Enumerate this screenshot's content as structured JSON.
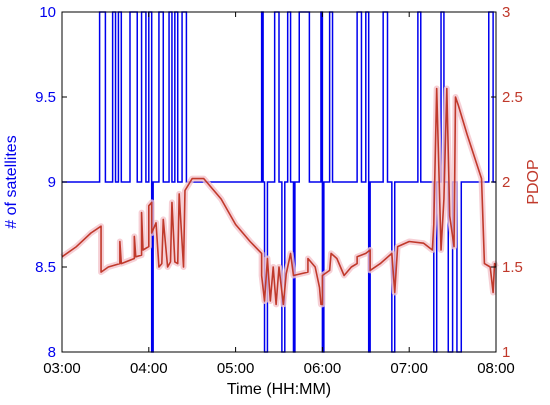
{
  "chart_data": {
    "type": "line",
    "xlabel": "Time (HH:MM)",
    "ylabel_left": "# of satellites",
    "ylabel_right": "PDOP",
    "x_range": [
      "03:00",
      "08:00"
    ],
    "x_ticks": [
      "03:00",
      "04:00",
      "05:00",
      "06:00",
      "07:00",
      "08:00"
    ],
    "y_left_range": [
      8,
      10
    ],
    "y_left_ticks": [
      "8",
      "8.5",
      "9",
      "9.5",
      "10"
    ],
    "y_right_range": [
      1,
      3
    ],
    "y_right_ticks": [
      "1",
      "1.5",
      "2",
      "2.5",
      "3"
    ],
    "grid": false,
    "colors": {
      "satellites": "#0000ee",
      "pdop": "#c0392b",
      "pdop_glow": "#f4c4cc"
    },
    "series": [
      {
        "axis": "left",
        "points": [
          [
            "03:00",
            9
          ],
          [
            "03:26",
            9
          ],
          [
            "03:26",
            10
          ],
          [
            "03:30",
            10
          ],
          [
            "03:30",
            9
          ],
          [
            "03:35",
            9
          ],
          [
            "03:35",
            10
          ],
          [
            "03:37",
            10
          ],
          [
            "03:37",
            9
          ],
          [
            "03:39",
            9
          ],
          [
            "03:39",
            10
          ],
          [
            "03:41",
            10
          ],
          [
            "03:41",
            9
          ],
          [
            "03:47",
            9
          ],
          [
            "03:47",
            10
          ],
          [
            "03:52",
            10
          ],
          [
            "03:52",
            9
          ],
          [
            "03:55",
            9
          ],
          [
            "03:55",
            10
          ],
          [
            "03:58",
            10
          ],
          [
            "03:58",
            9
          ],
          [
            "04:00",
            9
          ],
          [
            "04:00",
            10
          ],
          [
            "04:02",
            10
          ],
          [
            "04:02",
            8
          ],
          [
            "04:03",
            8
          ],
          [
            "04:03",
            9
          ],
          [
            "04:07",
            9
          ],
          [
            "04:07",
            10
          ],
          [
            "04:10",
            10
          ],
          [
            "04:10",
            9
          ],
          [
            "04:14",
            9
          ],
          [
            "04:14",
            10
          ],
          [
            "04:16",
            10
          ],
          [
            "04:16",
            9
          ],
          [
            "04:18",
            9
          ],
          [
            "04:18",
            10
          ],
          [
            "04:20",
            10
          ],
          [
            "04:20",
            9
          ],
          [
            "04:23",
            9
          ],
          [
            "04:23",
            10
          ],
          [
            "04:26",
            10
          ],
          [
            "04:26",
            9
          ],
          [
            "05:18",
            9
          ],
          [
            "05:18",
            10
          ],
          [
            "05:19",
            10
          ],
          [
            "05:19",
            9
          ],
          [
            "05:20",
            9
          ],
          [
            "05:20",
            8
          ],
          [
            "05:22",
            8
          ],
          [
            "05:22",
            9
          ],
          [
            "05:27",
            9
          ],
          [
            "05:27",
            10
          ],
          [
            "05:30",
            10
          ],
          [
            "05:30",
            9
          ],
          [
            "05:32",
            9
          ],
          [
            "05:32",
            8
          ],
          [
            "05:34",
            8
          ],
          [
            "05:34",
            9
          ],
          [
            "05:36",
            9
          ],
          [
            "05:36",
            10
          ],
          [
            "05:38",
            10
          ],
          [
            "05:38",
            9
          ],
          [
            "05:40",
            9
          ],
          [
            "05:40",
            8
          ],
          [
            "05:41",
            8
          ],
          [
            "05:41",
            9
          ],
          [
            "05:44",
            9
          ],
          [
            "05:44",
            10
          ],
          [
            "05:51",
            10
          ],
          [
            "05:51",
            9
          ],
          [
            "05:59",
            9
          ],
          [
            "05:59",
            10
          ],
          [
            "06:00",
            10
          ],
          [
            "06:00",
            8
          ],
          [
            "06:01",
            8
          ],
          [
            "06:01",
            9
          ],
          [
            "06:05",
            9
          ],
          [
            "06:05",
            10
          ],
          [
            "06:07",
            10
          ],
          [
            "06:07",
            9
          ],
          [
            "06:24",
            9
          ],
          [
            "06:24",
            10
          ],
          [
            "06:27",
            10
          ],
          [
            "06:27",
            9
          ],
          [
            "06:30",
            9
          ],
          [
            "06:30",
            10
          ],
          [
            "06:32",
            10
          ],
          [
            "06:32",
            8
          ],
          [
            "06:33",
            8
          ],
          [
            "06:33",
            9
          ],
          [
            "06:42",
            9
          ],
          [
            "06:42",
            10
          ],
          [
            "06:45",
            10
          ],
          [
            "06:45",
            9
          ],
          [
            "06:48",
            9
          ],
          [
            "06:48",
            8
          ],
          [
            "06:50",
            8
          ],
          [
            "06:50",
            9
          ],
          [
            "07:06",
            9
          ],
          [
            "07:06",
            10
          ],
          [
            "07:08",
            10
          ],
          [
            "07:08",
            9
          ],
          [
            "07:17",
            9
          ],
          [
            "07:17",
            8
          ],
          [
            "07:19",
            8
          ],
          [
            "07:19",
            9
          ],
          [
            "07:22",
            9
          ],
          [
            "07:22",
            10
          ],
          [
            "07:24",
            10
          ],
          [
            "07:24",
            9
          ],
          [
            "07:27",
            9
          ],
          [
            "07:27",
            8
          ],
          [
            "07:30",
            8
          ],
          [
            "07:30",
            9
          ],
          [
            "07:33",
            9
          ],
          [
            "07:33",
            8
          ],
          [
            "07:36",
            8
          ],
          [
            "07:36",
            9
          ],
          [
            "07:55",
            9
          ],
          [
            "07:55",
            10
          ],
          [
            "07:58",
            10
          ],
          [
            "07:58",
            9
          ],
          [
            "08:00",
            9
          ]
        ]
      },
      {
        "axis": "right",
        "points": [
          [
            "03:00",
            1.56
          ],
          [
            "03:10",
            1.62
          ],
          [
            "03:20",
            1.7
          ],
          [
            "03:27",
            1.74
          ],
          [
            "03:27",
            1.47
          ],
          [
            "03:32",
            1.5
          ],
          [
            "03:40",
            1.52
          ],
          [
            "03:40",
            1.65
          ],
          [
            "03:41",
            1.52
          ],
          [
            "03:50",
            1.55
          ],
          [
            "03:50",
            1.68
          ],
          [
            "03:51",
            1.56
          ],
          [
            "03:55",
            1.57
          ],
          [
            "03:55",
            1.82
          ],
          [
            "03:56",
            1.6
          ],
          [
            "04:00",
            1.62
          ],
          [
            "04:00",
            1.86
          ],
          [
            "04:02",
            1.88
          ],
          [
            "04:02",
            1.7
          ],
          [
            "04:03",
            1.72
          ],
          [
            "04:05",
            1.76
          ],
          [
            "04:07",
            1.5
          ],
          [
            "04:09",
            1.52
          ],
          [
            "04:10",
            1.78
          ],
          [
            "04:13",
            1.5
          ],
          [
            "04:15",
            1.53
          ],
          [
            "04:16",
            1.88
          ],
          [
            "04:18",
            1.53
          ],
          [
            "04:20",
            1.52
          ],
          [
            "04:21",
            1.93
          ],
          [
            "04:24",
            1.5
          ],
          [
            "04:25",
            1.95
          ],
          [
            "04:30",
            2.02
          ],
          [
            "04:38",
            2.02
          ],
          [
            "04:50",
            1.9
          ],
          [
            "05:00",
            1.75
          ],
          [
            "05:10",
            1.65
          ],
          [
            "05:18",
            1.58
          ],
          [
            "05:18",
            1.45
          ],
          [
            "05:20",
            1.3
          ],
          [
            "05:22",
            1.55
          ],
          [
            "05:24",
            1.3
          ],
          [
            "05:26",
            1.5
          ],
          [
            "05:28",
            1.28
          ],
          [
            "05:30",
            1.5
          ],
          [
            "05:33",
            1.28
          ],
          [
            "05:35",
            1.46
          ],
          [
            "05:38",
            1.58
          ],
          [
            "05:40",
            1.45
          ],
          [
            "05:50",
            1.47
          ],
          [
            "05:50",
            1.55
          ],
          [
            "05:55",
            1.5
          ],
          [
            "05:58",
            1.38
          ],
          [
            "05:59",
            1.28
          ],
          [
            "06:00",
            1.28
          ],
          [
            "06:00",
            1.45
          ],
          [
            "06:05",
            1.48
          ],
          [
            "06:06",
            1.58
          ],
          [
            "06:10",
            1.55
          ],
          [
            "06:15",
            1.45
          ],
          [
            "06:20",
            1.5
          ],
          [
            "06:24",
            1.52
          ],
          [
            "06:24",
            1.56
          ],
          [
            "06:30",
            1.58
          ],
          [
            "06:33",
            1.6
          ],
          [
            "06:33",
            1.48
          ],
          [
            "06:40",
            1.52
          ],
          [
            "06:48",
            1.58
          ],
          [
            "06:50",
            1.35
          ],
          [
            "06:52",
            1.62
          ],
          [
            "07:00",
            1.65
          ],
          [
            "07:10",
            1.64
          ],
          [
            "07:16",
            1.6
          ],
          [
            "07:17",
            1.75
          ],
          [
            "07:19",
            2.55
          ],
          [
            "07:22",
            1.6
          ],
          [
            "07:24",
            1.9
          ],
          [
            "07:26",
            2.55
          ],
          [
            "07:28",
            1.8
          ],
          [
            "07:31",
            1.62
          ],
          [
            "07:32",
            2.5
          ],
          [
            "07:34",
            2.45
          ],
          [
            "07:40",
            2.28
          ],
          [
            "07:50",
            2.02
          ],
          [
            "07:52",
            1.52
          ],
          [
            "07:56",
            1.5
          ],
          [
            "07:58",
            1.35
          ],
          [
            "07:59",
            1.52
          ],
          [
            "08:00",
            1.5
          ]
        ]
      }
    ]
  }
}
